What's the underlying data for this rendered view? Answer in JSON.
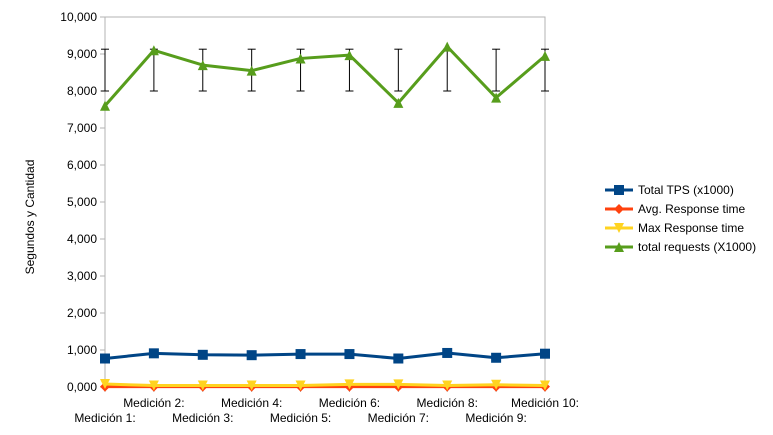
{
  "chart_data": {
    "type": "line",
    "title": "",
    "xlabel": "",
    "ylabel": "Segundos y Cantidad",
    "ylim": [
      0,
      10000
    ],
    "y_ticks": [
      0,
      1000,
      2000,
      3000,
      4000,
      5000,
      6000,
      7000,
      8000,
      9000,
      10000
    ],
    "y_tick_labels": [
      "0,000",
      "1,000",
      "2,000",
      "3,000",
      "4,000",
      "5,000",
      "6,000",
      "7,000",
      "8,000",
      "9,000",
      "10,000"
    ],
    "grid": "none",
    "legend_position": "right",
    "categories": [
      "Medición 1:",
      "Medición 2:",
      "Medición 3:",
      "Medición 4:",
      "Medición 5:",
      "Medición 6:",
      "Medición 7:",
      "Medición 8:",
      "Medición 9:",
      "Medición 10:"
    ],
    "series": [
      {
        "name": "Total TPS (x1000)",
        "color": "#004586",
        "marker": "square",
        "values": [
          770,
          910,
          870,
          860,
          890,
          890,
          770,
          920,
          790,
          900
        ]
      },
      {
        "name": "Avg. Response time",
        "color": "#ff420e",
        "marker": "diamond",
        "values": [
          10,
          10,
          10,
          10,
          10,
          10,
          10,
          10,
          10,
          10
        ]
      },
      {
        "name": "Max Response time",
        "color": "#ffd320",
        "marker": "triangle-down",
        "values": [
          80,
          40,
          40,
          40,
          40,
          70,
          70,
          40,
          60,
          40
        ]
      },
      {
        "name": "total requests (X1000)",
        "color": "#579d1c",
        "marker": "triangle-up",
        "values": [
          7600,
          9100,
          8700,
          8550,
          8880,
          8970,
          7680,
          9200,
          7820,
          8950
        ]
      }
    ],
    "error_bars": {
      "series": "total requests (X1000)",
      "low": 8000,
      "high": 9130
    }
  }
}
